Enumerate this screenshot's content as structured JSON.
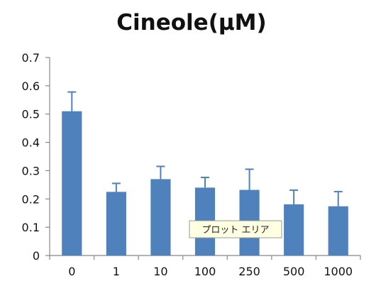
{
  "chart_data": {
    "type": "bar",
    "title": "Cineole(μM)",
    "xlabel": "",
    "ylabel": "",
    "categories": [
      "0",
      "1",
      "10",
      "100",
      "250",
      "500",
      "1000"
    ],
    "values": [
      0.51,
      0.225,
      0.27,
      0.24,
      0.232,
      0.181,
      0.174
    ],
    "errors": [
      0.068,
      0.03,
      0.045,
      0.036,
      0.073,
      0.05,
      0.052
    ],
    "ylim": [
      0,
      0.7
    ],
    "yticks": [
      0,
      0.1,
      0.2,
      0.3,
      0.4,
      0.5,
      0.6,
      0.7
    ],
    "ytick_labels": [
      "0",
      "0.1",
      "0.2",
      "0.3",
      "0.4",
      "0.5",
      "0.6",
      "0.7"
    ],
    "grid": false,
    "legend": "none",
    "bar_color": "#4F81BD",
    "axis_color": "#888888",
    "error_bar_color": "#4F81BD"
  },
  "tooltip": {
    "text": "プロット エリア",
    "background": "#FFFFE1",
    "border": "#999999"
  }
}
